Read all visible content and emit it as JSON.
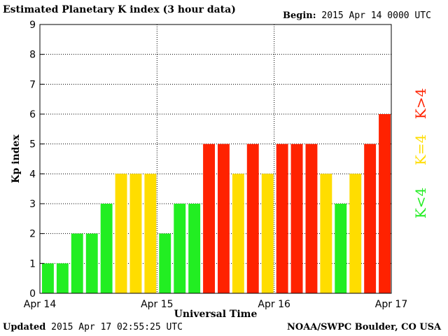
{
  "header": {
    "title": "Estimated Planetary K index (3 hour data)",
    "begin_label": "Begin:",
    "begin_value": "2015 Apr 14 0000 UTC"
  },
  "footer": {
    "updated_label": "Updated",
    "updated_value": "2015 Apr 17 02:55:25 UTC",
    "source": "NOAA/SWPC Boulder, CO USA"
  },
  "legend": {
    "high": "K>4",
    "equal": "K=4",
    "low": "K<4"
  },
  "colors": {
    "low": "#22ee22",
    "equal": "#ffdd00",
    "high": "#ff2200"
  },
  "chart_data": {
    "type": "bar",
    "title": "Estimated Planetary K index (3 hour data)",
    "xlabel": "Universal Time",
    "ylabel": "Kp index",
    "ylim": [
      0,
      9
    ],
    "yticks": [
      "0",
      "1",
      "2",
      "3",
      "4",
      "5",
      "6",
      "7",
      "8",
      "9"
    ],
    "xticks": [
      "Apr 14",
      "Apr 15",
      "Apr 16",
      "Apr 17"
    ],
    "grid": true,
    "values": [
      1,
      1,
      2,
      2,
      3,
      4,
      4,
      4,
      2,
      3,
      3,
      5,
      5,
      4,
      5,
      4,
      5,
      5,
      5,
      4,
      3,
      4,
      5,
      6
    ]
  }
}
